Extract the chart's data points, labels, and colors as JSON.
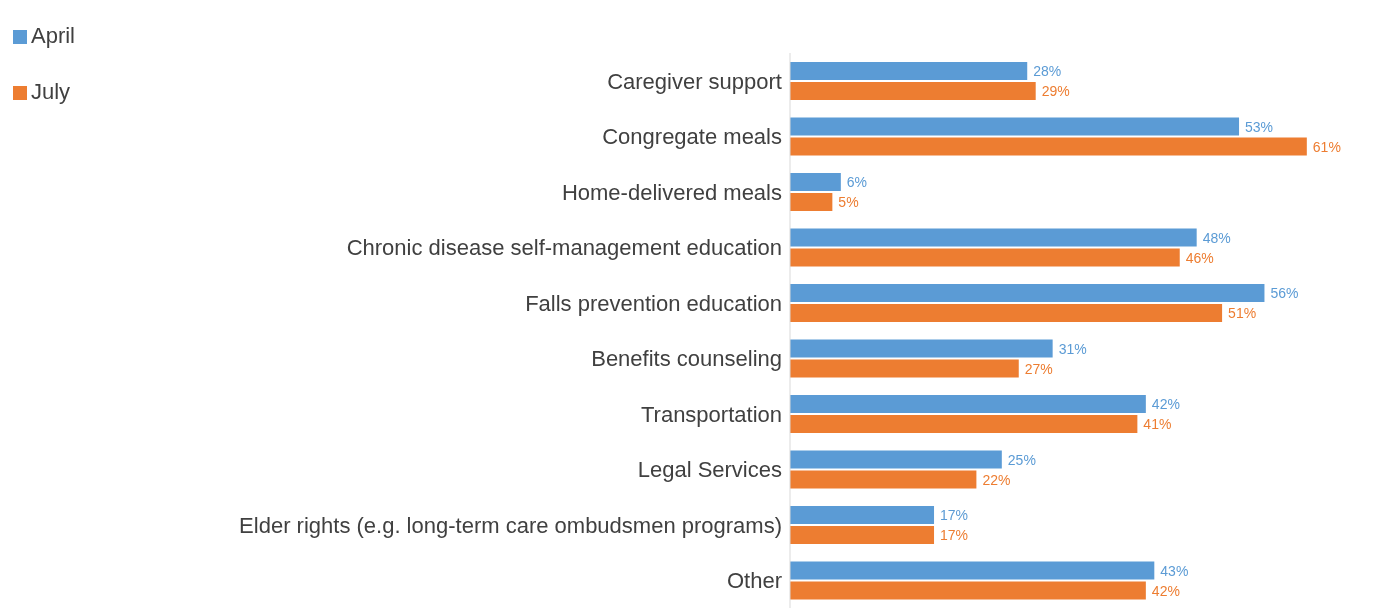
{
  "chart_data": {
    "type": "bar",
    "orientation": "horizontal",
    "legend": "top left",
    "grid": false,
    "categories": [
      "Caregiver support",
      "Congregate meals",
      "Home-delivered meals",
      "Chronic disease self-management education",
      "Falls prevention education",
      "Benefits counseling",
      "Transportation",
      "Legal Services",
      "Elder rights (e.g. long-term care ombudsmen programs)",
      "Other"
    ],
    "series": [
      {
        "name": "April",
        "color": "#5b9bd5",
        "values": [
          28,
          53,
          6,
          48,
          56,
          31,
          42,
          25,
          17,
          43
        ],
        "value_labels": [
          "28%",
          "53%",
          "6%",
          "48%",
          "56%",
          "31%",
          "42%",
          "25%",
          "17%",
          "43%"
        ]
      },
      {
        "name": "July",
        "color": "#ed7d31",
        "values": [
          29,
          61,
          5,
          46,
          51,
          27,
          41,
          22,
          17,
          42
        ],
        "value_labels": [
          "29%",
          "61%",
          "5%",
          "46%",
          "51%",
          "27%",
          "41%",
          "22%",
          "17%",
          "42%"
        ]
      }
    ]
  }
}
